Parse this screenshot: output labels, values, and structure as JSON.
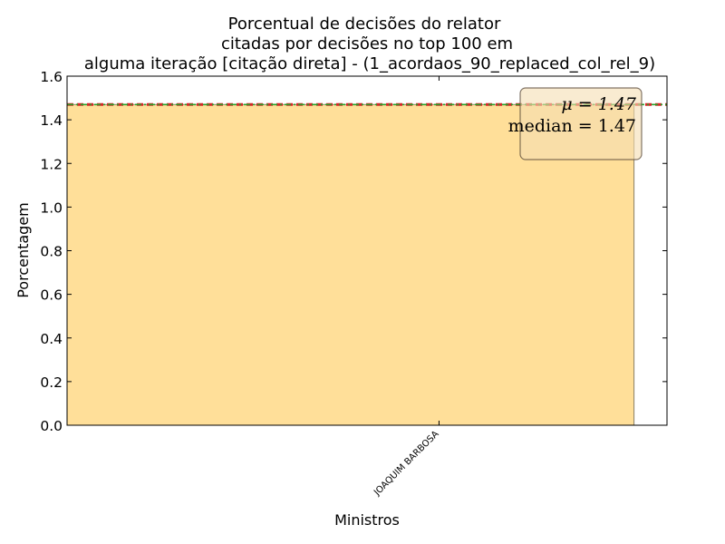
{
  "chart_data": {
    "type": "bar",
    "title_lines": [
      "Porcentual de decisões do relator",
      "citadas por decisões no top 100 em",
      "alguma iteração [citação direta] - (1_acordaos_90_replaced_col_rel_9)"
    ],
    "xlabel": "Ministros",
    "ylabel": "Porcentagem",
    "categories": [
      "JOAQUIM BARBOSA"
    ],
    "values": [
      1.47
    ],
    "ylim": [
      0,
      1.6
    ],
    "yticks": [
      "0.0",
      "0.2",
      "0.4",
      "0.6",
      "0.8",
      "1.0",
      "1.2",
      "1.4",
      "1.6"
    ],
    "mean": 1.47,
    "median": 1.47,
    "stats_box": {
      "mean_label": "μ = 1.47",
      "median_label": "median = 1.47",
      "placement": "top-right"
    },
    "colors": {
      "bar": "#ffdf99",
      "mean_line": "#d62728",
      "median_line": "#2ca02c",
      "stats_box_fill": "#f5deb3"
    },
    "grid": false
  }
}
